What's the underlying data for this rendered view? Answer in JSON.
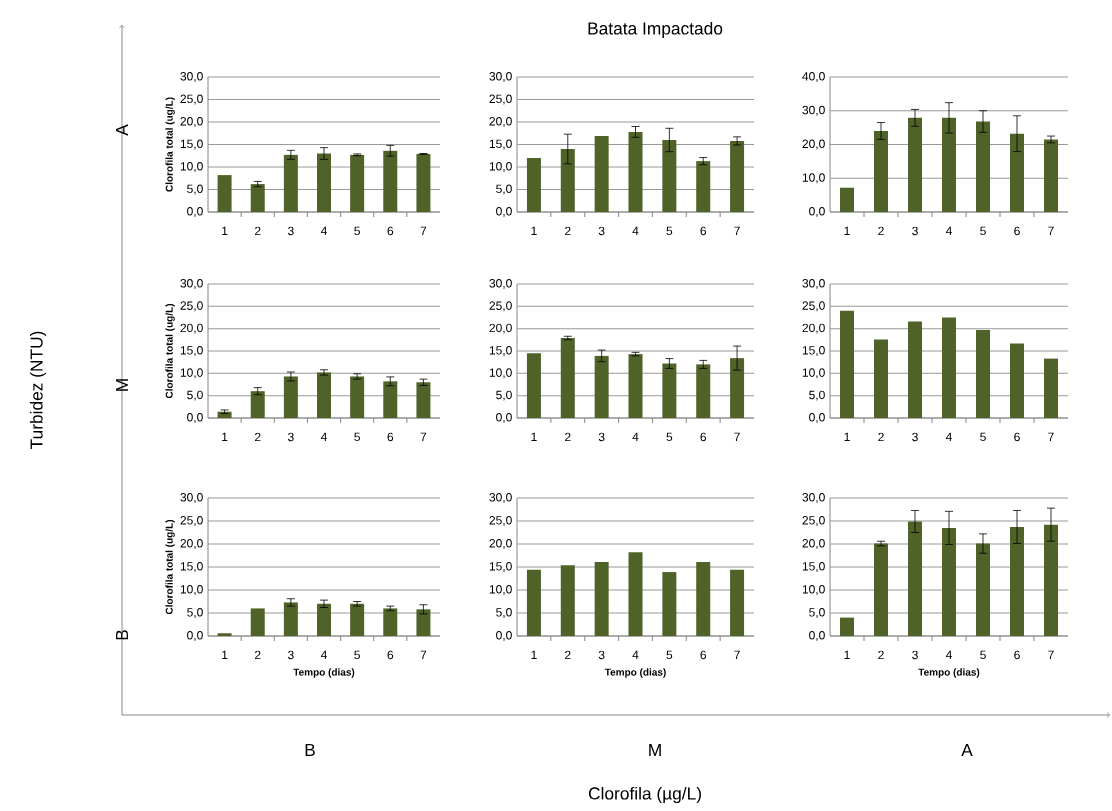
{
  "chart_data": [
    {
      "type": "other",
      "title": "Batata Impactado",
      "xlabel": "Clorofila (µg/L)",
      "ylabel": "Turbidez (NTU)",
      "categories": [
        "B",
        "M",
        "A"
      ],
      "y_categories": [
        "A",
        "M",
        "B"
      ]
    },
    {
      "type": "bar",
      "categories": [
        "1",
        "2",
        "3",
        "4",
        "5",
        "6",
        "7"
      ],
      "values": [
        8.2,
        6.2,
        12.7,
        13.0,
        12.7,
        13.6,
        12.9
      ],
      "errors": [
        null,
        0.6,
        1.0,
        1.3,
        0.2,
        1.2,
        0.1
      ],
      "color": "#4f6228",
      "ylim": [
        0,
        30
      ],
      "yticks": [
        {
          "value": 0,
          "label": "0,0"
        },
        {
          "value": 5,
          "label": "5,0"
        },
        {
          "value": 10,
          "label": "10,0"
        },
        {
          "value": 15,
          "label": "15,0"
        },
        {
          "value": 20,
          "label": "20,0"
        },
        {
          "value": 25,
          "label": "25,0"
        },
        {
          "value": 30,
          "label": "30,0"
        }
      ],
      "grid": "y",
      "ylabel": "Clorofila total (ug/L)"
    },
    {
      "type": "bar",
      "categories": [
        "1",
        "2",
        "3",
        "4",
        "5",
        "6",
        "7"
      ],
      "values": [
        12.0,
        14.0,
        16.9,
        17.8,
        16.0,
        11.3,
        15.8
      ],
      "errors": [
        null,
        3.3,
        null,
        1.2,
        2.6,
        0.8,
        0.9
      ],
      "color": "#4f6228",
      "ylim": [
        0,
        30
      ],
      "yticks": [
        {
          "value": 0,
          "label": "0,0"
        },
        {
          "value": 5,
          "label": "5,0"
        },
        {
          "value": 10,
          "label": "10,0"
        },
        {
          "value": 15,
          "label": "15,0"
        },
        {
          "value": 20,
          "label": "20,0"
        },
        {
          "value": 25,
          "label": "25,0"
        },
        {
          "value": 30,
          "label": "30,0"
        }
      ],
      "grid": "y"
    },
    {
      "type": "bar",
      "categories": [
        "1",
        "2",
        "3",
        "4",
        "5",
        "6",
        "7"
      ],
      "values": [
        7.2,
        24.0,
        27.9,
        27.9,
        26.8,
        23.2,
        21.5
      ],
      "errors": [
        null,
        2.5,
        2.5,
        4.5,
        3.2,
        5.3,
        1.0
      ],
      "color": "#4f6228",
      "ylim": [
        0,
        40
      ],
      "yticks": [
        {
          "value": 0,
          "label": "0,0"
        },
        {
          "value": 10,
          "label": "10,0"
        },
        {
          "value": 20,
          "label": "20,0"
        },
        {
          "value": 30,
          "label": "30,0"
        },
        {
          "value": 40,
          "label": "40,0"
        }
      ],
      "grid": "y"
    },
    {
      "type": "bar",
      "categories": [
        "1",
        "2",
        "3",
        "4",
        "5",
        "6",
        "7"
      ],
      "values": [
        1.4,
        6.0,
        9.3,
        10.2,
        9.3,
        8.2,
        8.0
      ],
      "errors": [
        0.4,
        0.8,
        1.0,
        0.6,
        0.6,
        1.0,
        0.7
      ],
      "color": "#4f6228",
      "ylim": [
        0,
        30
      ],
      "yticks": [
        {
          "value": 0,
          "label": "0,0"
        },
        {
          "value": 5,
          "label": "5,0"
        },
        {
          "value": 10,
          "label": "10,0"
        },
        {
          "value": 15,
          "label": "15,0"
        },
        {
          "value": 20,
          "label": "20,0"
        },
        {
          "value": 25,
          "label": "25,0"
        },
        {
          "value": 30,
          "label": "30,0"
        }
      ],
      "grid": "y",
      "ylabel": "Clorofila total (ug/L)"
    },
    {
      "type": "bar",
      "categories": [
        "1",
        "2",
        "3",
        "4",
        "5",
        "6",
        "7"
      ],
      "values": [
        14.5,
        17.9,
        13.9,
        14.3,
        12.2,
        12.0,
        13.4
      ],
      "errors": [
        null,
        0.4,
        1.3,
        0.4,
        1.1,
        0.9,
        2.7
      ],
      "color": "#4f6228",
      "ylim": [
        0,
        30
      ],
      "yticks": [
        {
          "value": 0,
          "label": "0,0"
        },
        {
          "value": 5,
          "label": "5,0"
        },
        {
          "value": 10,
          "label": "10,0"
        },
        {
          "value": 15,
          "label": "15,0"
        },
        {
          "value": 20,
          "label": "20,0"
        },
        {
          "value": 25,
          "label": "25,0"
        },
        {
          "value": 30,
          "label": "30,0"
        }
      ],
      "grid": "y"
    },
    {
      "type": "bar",
      "categories": [
        "1",
        "2",
        "3",
        "4",
        "5",
        "6",
        "7"
      ],
      "values": [
        24.0,
        17.6,
        21.6,
        22.5,
        19.7,
        16.7,
        13.3
      ],
      "color": "#4f6228",
      "ylim": [
        0,
        30
      ],
      "yticks": [
        {
          "value": 0,
          "label": "0,0"
        },
        {
          "value": 5,
          "label": "5,0"
        },
        {
          "value": 10,
          "label": "10,0"
        },
        {
          "value": 15,
          "label": "15,0"
        },
        {
          "value": 20,
          "label": "20,0"
        },
        {
          "value": 25,
          "label": "25,0"
        },
        {
          "value": 30,
          "label": "30,0"
        }
      ],
      "grid": "y"
    },
    {
      "type": "bar",
      "categories": [
        "1",
        "2",
        "3",
        "4",
        "5",
        "6",
        "7"
      ],
      "values": [
        0.6,
        6.0,
        7.3,
        7.0,
        7.0,
        6.0,
        5.8
      ],
      "errors": [
        null,
        null,
        0.8,
        0.8,
        0.5,
        0.5,
        1.0
      ],
      "color": "#4f6228",
      "ylim": [
        0,
        30
      ],
      "yticks": [
        {
          "value": 0,
          "label": "0,0"
        },
        {
          "value": 5,
          "label": "5,0"
        },
        {
          "value": 10,
          "label": "10,0"
        },
        {
          "value": 15,
          "label": "15,0"
        },
        {
          "value": 20,
          "label": "20,0"
        },
        {
          "value": 25,
          "label": "25,0"
        },
        {
          "value": 30,
          "label": "30,0"
        }
      ],
      "grid": "y",
      "ylabel": "Clorofila total (ug/L)",
      "xlabel": "Tempo (dias)"
    },
    {
      "type": "bar",
      "categories": [
        "1",
        "2",
        "3",
        "4",
        "5",
        "6",
        "7"
      ],
      "values": [
        14.4,
        15.4,
        16.1,
        18.2,
        13.9,
        16.1,
        14.4
      ],
      "color": "#4f6228",
      "ylim": [
        0,
        30
      ],
      "yticks": [
        {
          "value": 0,
          "label": "0,0"
        },
        {
          "value": 5,
          "label": "5,0"
        },
        {
          "value": 10,
          "label": "10,0"
        },
        {
          "value": 15,
          "label": "15,0"
        },
        {
          "value": 20,
          "label": "20,0"
        },
        {
          "value": 25,
          "label": "25,0"
        },
        {
          "value": 30,
          "label": "30,0"
        }
      ],
      "grid": "y",
      "xlabel": "Tempo (dias)"
    },
    {
      "type": "bar",
      "categories": [
        "1",
        "2",
        "3",
        "4",
        "5",
        "6",
        "7"
      ],
      "values": [
        4.0,
        20.1,
        24.9,
        23.5,
        20.1,
        23.7,
        24.2
      ],
      "errors": [
        null,
        0.5,
        2.4,
        3.6,
        2.1,
        3.6,
        3.6
      ],
      "color": "#4f6228",
      "ylim": [
        0,
        30
      ],
      "yticks": [
        {
          "value": 0,
          "label": "0,0"
        },
        {
          "value": 5,
          "label": "5,0"
        },
        {
          "value": 10,
          "label": "10,0"
        },
        {
          "value": 15,
          "label": "15,0"
        },
        {
          "value": 20,
          "label": "20,0"
        },
        {
          "value": 25,
          "label": "25,0"
        },
        {
          "value": 30,
          "label": "30,0"
        }
      ],
      "grid": "y",
      "xlabel": "Tempo (dias)"
    }
  ]
}
